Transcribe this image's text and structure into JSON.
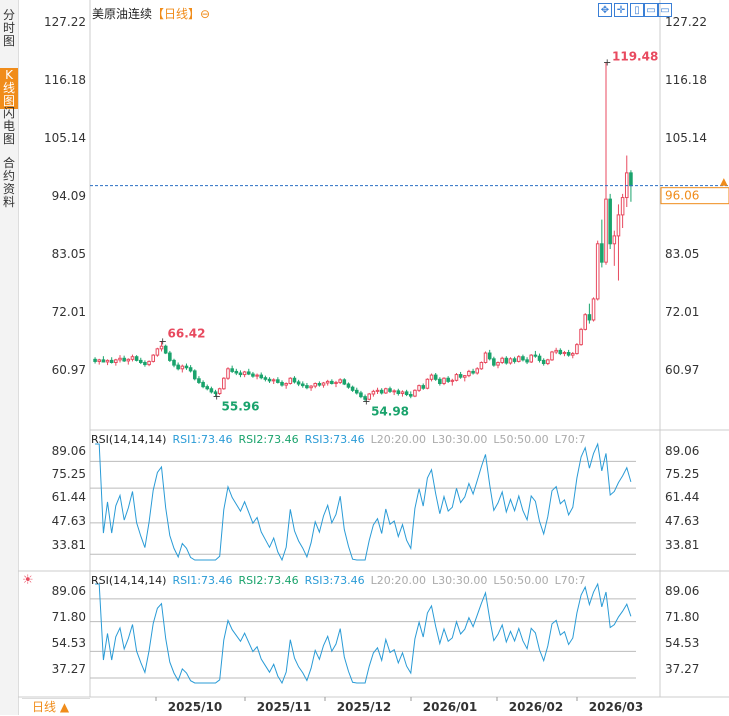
{
  "side_tabs": [
    {
      "label": "分时图",
      "active": false
    },
    {
      "label": "K线图",
      "active": true
    },
    {
      "label": "闪电图",
      "active": false
    },
    {
      "label": "合约资料",
      "active": false
    }
  ],
  "header": {
    "name": "美原油连续",
    "period": "【日线】",
    "period_icon": "⊖"
  },
  "toolbar": {
    "icons": [
      "fullscreen-icon",
      "crosshair-icon",
      "draw-icon",
      "indicator-icon",
      "settings-icon"
    ],
    "glyphs": [
      "✥",
      "✛",
      "▯",
      "▭",
      "▭"
    ]
  },
  "period_button": {
    "label": "日线 ▲"
  },
  "colors": {
    "up": "#e84a5f",
    "down": "#1aa36c",
    "line": "#2a9bd6",
    "price_line": "#2a6fc2",
    "accent": "#f08c1a"
  },
  "chart_data": {
    "type": "candlestick",
    "y_axis": {
      "ticks": [
        "127.22",
        "116.18",
        "105.14",
        "94.09",
        "83.05",
        "72.01",
        "60.97"
      ],
      "range": [
        55.0,
        127.22
      ]
    },
    "x_axis": {
      "labels": [
        "2025/10",
        "2025/11",
        "2025/12",
        "2026/01",
        "2026/02",
        "2026/03"
      ]
    },
    "current_price": "96.06",
    "annotations": {
      "high1": "66.42",
      "low1": "55.96",
      "low2": "54.98",
      "high2": "119.48"
    },
    "ohlc": [
      [
        63.0,
        63.4,
        62.2,
        62.6
      ],
      [
        62.6,
        63.1,
        62.0,
        62.9
      ],
      [
        62.9,
        63.6,
        62.4,
        62.5
      ],
      [
        62.5,
        63.0,
        61.9,
        62.8
      ],
      [
        62.8,
        63.4,
        62.2,
        62.4
      ],
      [
        62.4,
        63.1,
        61.8,
        62.9
      ],
      [
        62.9,
        63.8,
        62.4,
        63.2
      ],
      [
        63.2,
        63.7,
        62.5,
        62.7
      ],
      [
        62.7,
        63.2,
        62.0,
        63.0
      ],
      [
        63.0,
        63.9,
        62.6,
        63.5
      ],
      [
        63.5,
        63.8,
        62.6,
        62.8
      ],
      [
        62.8,
        63.3,
        62.1,
        62.4
      ],
      [
        62.4,
        62.8,
        61.6,
        62.0
      ],
      [
        62.0,
        62.8,
        61.7,
        62.6
      ],
      [
        62.6,
        64.0,
        62.4,
        63.8
      ],
      [
        63.8,
        65.2,
        63.5,
        65.0
      ],
      [
        65.0,
        66.42,
        64.5,
        65.5
      ],
      [
        65.5,
        65.8,
        64.0,
        64.2
      ],
      [
        64.2,
        64.6,
        62.5,
        62.8
      ],
      [
        62.8,
        63.1,
        61.5,
        61.9
      ],
      [
        61.9,
        62.4,
        60.9,
        61.2
      ],
      [
        61.2,
        62.0,
        60.5,
        61.7
      ],
      [
        61.7,
        62.2,
        61.0,
        61.4
      ],
      [
        61.4,
        61.9,
        60.5,
        60.8
      ],
      [
        60.8,
        61.1,
        59.0,
        59.3
      ],
      [
        59.3,
        59.8,
        58.3,
        58.6
      ],
      [
        58.6,
        59.0,
        57.5,
        57.8
      ],
      [
        57.8,
        58.2,
        57.1,
        57.4
      ],
      [
        57.4,
        57.8,
        56.5,
        56.8
      ],
      [
        56.8,
        57.2,
        55.96,
        56.5
      ],
      [
        56.5,
        57.6,
        56.2,
        57.4
      ],
      [
        57.4,
        59.6,
        57.2,
        59.4
      ],
      [
        59.4,
        61.5,
        59.1,
        61.2
      ],
      [
        61.2,
        61.8,
        60.4,
        60.7
      ],
      [
        60.7,
        61.2,
        60.0,
        60.4
      ],
      [
        60.4,
        60.9,
        59.6,
        60.1
      ],
      [
        60.1,
        60.8,
        59.6,
        60.6
      ],
      [
        60.6,
        61.2,
        60.0,
        60.2
      ],
      [
        60.2,
        60.6,
        59.5,
        59.8
      ],
      [
        59.8,
        60.3,
        59.2,
        60.0
      ],
      [
        60.0,
        60.5,
        59.2,
        59.5
      ],
      [
        59.5,
        59.9,
        58.8,
        59.2
      ],
      [
        59.2,
        59.6,
        58.5,
        58.9
      ],
      [
        58.9,
        59.4,
        58.3,
        59.1
      ],
      [
        59.1,
        59.6,
        58.4,
        58.6
      ],
      [
        58.6,
        59.0,
        57.8,
        58.1
      ],
      [
        58.1,
        58.6,
        57.4,
        58.4
      ],
      [
        58.4,
        59.6,
        58.2,
        59.4
      ],
      [
        59.4,
        59.8,
        58.4,
        58.7
      ],
      [
        58.7,
        59.1,
        57.9,
        58.3
      ],
      [
        58.3,
        58.8,
        57.6,
        58.0
      ],
      [
        58.0,
        58.5,
        57.3,
        57.6
      ],
      [
        57.6,
        58.1,
        57.0,
        57.9
      ],
      [
        57.9,
        58.6,
        57.5,
        58.4
      ],
      [
        58.4,
        58.8,
        57.8,
        58.1
      ],
      [
        58.1,
        58.7,
        57.6,
        58.5
      ],
      [
        58.5,
        59.1,
        58.0,
        58.8
      ],
      [
        58.8,
        59.2,
        58.2,
        58.4
      ],
      [
        58.4,
        58.9,
        57.7,
        58.6
      ],
      [
        58.6,
        59.4,
        58.3,
        59.1
      ],
      [
        59.1,
        59.4,
        58.1,
        58.3
      ],
      [
        58.3,
        58.6,
        57.4,
        57.7
      ],
      [
        57.7,
        58.0,
        56.8,
        57.1
      ],
      [
        57.1,
        57.6,
        56.3,
        56.6
      ],
      [
        56.6,
        57.0,
        55.6,
        55.9
      ],
      [
        55.9,
        56.3,
        54.98,
        55.4
      ],
      [
        55.4,
        56.6,
        55.2,
        56.4
      ],
      [
        56.4,
        57.2,
        55.9,
        56.9
      ],
      [
        56.9,
        57.6,
        56.4,
        57.1
      ],
      [
        57.1,
        57.5,
        56.3,
        56.6
      ],
      [
        56.6,
        57.6,
        56.4,
        57.4
      ],
      [
        57.4,
        57.8,
        56.6,
        56.9
      ],
      [
        56.9,
        57.3,
        56.2,
        57.0
      ],
      [
        57.0,
        57.4,
        56.1,
        56.5
      ],
      [
        56.5,
        57.1,
        55.9,
        56.8
      ],
      [
        56.8,
        57.2,
        56.0,
        56.3
      ],
      [
        56.3,
        56.9,
        55.6,
        56.0
      ],
      [
        56.0,
        57.3,
        55.8,
        57.1
      ],
      [
        57.1,
        58.2,
        56.8,
        58.0
      ],
      [
        58.0,
        58.4,
        57.2,
        57.5
      ],
      [
        57.5,
        59.4,
        57.3,
        59.2
      ],
      [
        59.2,
        60.3,
        58.8,
        60.0
      ],
      [
        60.0,
        60.4,
        58.9,
        59.2
      ],
      [
        59.2,
        59.6,
        58.0,
        58.4
      ],
      [
        58.4,
        59.6,
        58.1,
        59.4
      ],
      [
        59.4,
        59.8,
        58.5,
        58.8
      ],
      [
        58.8,
        59.3,
        58.0,
        59.0
      ],
      [
        59.0,
        60.4,
        58.8,
        60.1
      ],
      [
        60.1,
        60.6,
        59.3,
        59.6
      ],
      [
        59.6,
        60.0,
        58.8,
        59.9
      ],
      [
        59.9,
        61.0,
        59.6,
        60.7
      ],
      [
        60.7,
        61.2,
        60.1,
        60.4
      ],
      [
        60.4,
        61.5,
        60.1,
        61.2
      ],
      [
        61.2,
        62.6,
        61.0,
        62.4
      ],
      [
        62.4,
        64.5,
        62.2,
        64.2
      ],
      [
        64.2,
        64.8,
        62.8,
        63.1
      ],
      [
        63.1,
        63.5,
        61.6,
        61.9
      ],
      [
        61.9,
        62.6,
        61.3,
        62.4
      ],
      [
        62.4,
        63.5,
        62.1,
        63.2
      ],
      [
        63.2,
        63.6,
        62.0,
        62.3
      ],
      [
        62.3,
        63.4,
        62.0,
        63.1
      ],
      [
        63.1,
        63.5,
        62.2,
        62.6
      ],
      [
        62.6,
        63.8,
        62.4,
        63.5
      ],
      [
        63.5,
        63.9,
        62.6,
        62.9
      ],
      [
        62.9,
        63.4,
        62.1,
        62.5
      ],
      [
        62.5,
        64.0,
        62.3,
        63.8
      ],
      [
        63.8,
        64.6,
        63.3,
        63.6
      ],
      [
        63.6,
        64.1,
        62.4,
        62.8
      ],
      [
        62.8,
        63.2,
        61.8,
        62.2
      ],
      [
        62.2,
        63.1,
        61.9,
        62.9
      ],
      [
        62.9,
        64.6,
        62.7,
        64.4
      ],
      [
        64.4,
        65.2,
        64.0,
        64.7
      ],
      [
        64.7,
        65.1,
        63.8,
        64.1
      ],
      [
        64.1,
        64.6,
        63.6,
        64.3
      ],
      [
        64.3,
        64.8,
        63.5,
        63.8
      ],
      [
        63.8,
        64.4,
        63.2,
        64.1
      ],
      [
        64.1,
        66.1,
        63.9,
        65.8
      ],
      [
        65.8,
        69.0,
        65.6,
        68.7
      ],
      [
        68.7,
        71.8,
        68.5,
        71.5
      ],
      [
        71.5,
        73.6,
        69.8,
        70.5
      ],
      [
        70.5,
        74.8,
        70.2,
        74.5
      ],
      [
        74.5,
        85.6,
        74.2,
        85.0
      ],
      [
        85.0,
        89.6,
        80.5,
        81.5
      ],
      [
        81.5,
        119.48,
        81.0,
        93.5
      ],
      [
        93.5,
        94.5,
        84.0,
        85.0
      ],
      [
        85.0,
        87.5,
        80.8,
        86.5
      ],
      [
        86.5,
        92.5,
        78.0,
        90.5
      ],
      [
        90.5,
        94.5,
        88.0,
        93.8
      ],
      [
        93.8,
        101.8,
        92.0,
        98.5
      ],
      [
        98.5,
        99.0,
        93.0,
        96.06
      ]
    ],
    "rsi_panels": [
      {
        "legend": [
          "RSI(14,14,14)",
          "RSI1:73.46",
          "RSI2:73.46",
          "RSI3:73.46",
          "L20:20.00",
          "L30:30.00",
          "L50:50.00",
          "L70:7"
        ],
        "ticks": [
          "89.06",
          "75.25",
          "61.44",
          "47.63",
          "33.81"
        ],
        "range": [
          28.0,
          92.0
        ]
      },
      {
        "legend": [
          "RSI(14,14,14)",
          "RSI1:73.46",
          "RSI2:73.46",
          "RSI3:73.46",
          "L20:20.00",
          "L30:30.00",
          "L50:50.00",
          "L70:7"
        ],
        "ticks": [
          "89.06",
          "71.80",
          "54.53",
          "37.27"
        ],
        "range": [
          28.0,
          92.0
        ]
      }
    ]
  }
}
